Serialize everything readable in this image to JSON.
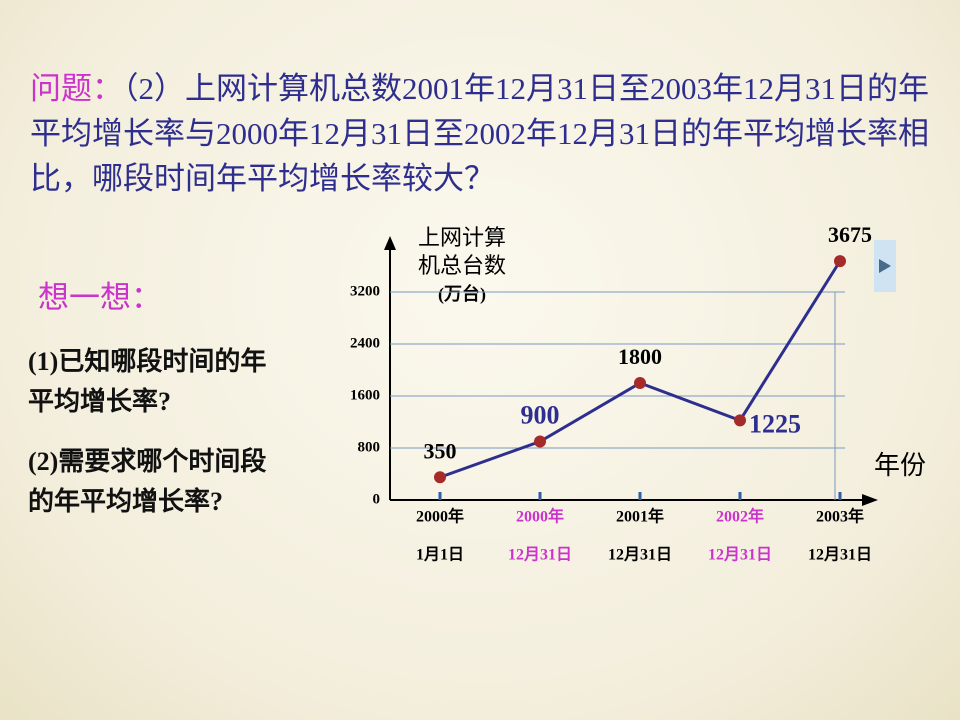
{
  "question_label": "问题：",
  "question": "（2）上网计算机总数2001年12月31日至2003年12月31日的年平均增长率与2000年12月31日至2002年12月31日的年平均增长率相比，哪段时间年平均增长率较大？",
  "think_label": "想一想：",
  "hints": [
    "(1)已知哪段时间的年平均增长率?",
    "(2)需要求哪个时间段的年平均增长率?"
  ],
  "chart_data": {
    "type": "line",
    "ylabel": [
      "上网计算",
      "机总台数",
      "(万台)"
    ],
    "xlabel": "年份",
    "categories": [
      [
        "2000年",
        "1月1日"
      ],
      [
        "2000年",
        "12月31日"
      ],
      [
        "2001年",
        "12月31日"
      ],
      [
        "2002年",
        "12月31日"
      ],
      [
        "2003年",
        "12月31日"
      ]
    ],
    "category_colors": [
      "#000000",
      "#cc33cc",
      "#000000",
      "#cc33cc",
      "#000000"
    ],
    "values": [
      350,
      900,
      1800,
      1225,
      3675
    ],
    "value_label_colors": [
      "#000000",
      "#2e2e8f",
      "#000000",
      "#2e2e8f",
      "#000000"
    ],
    "line_color": "#2e2e8f",
    "marker_color": "#a52a2a",
    "ylim": [
      0,
      4000
    ],
    "yticks": [
      0,
      800,
      1600,
      2400,
      3200
    ],
    "grid": true
  }
}
